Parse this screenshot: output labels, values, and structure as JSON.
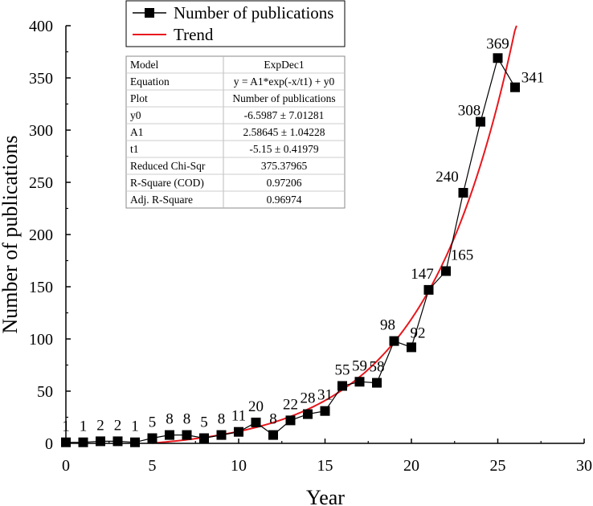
{
  "chart_data": {
    "type": "line",
    "xlabel": "Year",
    "ylabel": "Number of publications",
    "xlim": [
      0,
      30
    ],
    "ylim": [
      0,
      400
    ],
    "xticks": [
      0,
      5,
      10,
      15,
      20,
      25,
      30
    ],
    "yticks": [
      0,
      50,
      100,
      150,
      200,
      250,
      300,
      350,
      400
    ],
    "grid": false,
    "legend_position": "top-left",
    "series": [
      {
        "name": "Number of publications",
        "style": "line-with-square-markers",
        "color": "#000000",
        "x": [
          0,
          1,
          2,
          3,
          4,
          5,
          6,
          7,
          8,
          9,
          10,
          11,
          12,
          13,
          14,
          15,
          16,
          17,
          18,
          19,
          20,
          21,
          22,
          23,
          24,
          25,
          26
        ],
        "values": [
          1,
          1,
          2,
          2,
          1,
          5,
          8,
          8,
          5,
          8,
          11,
          20,
          8,
          22,
          28,
          31,
          55,
          59,
          58,
          98,
          92,
          147,
          165,
          240,
          308,
          369,
          341
        ]
      },
      {
        "name": "Trend",
        "style": "line",
        "color": "#e8171d",
        "model": "exp-dec1",
        "params": {
          "y0": -6.5987,
          "A1": 2.58645,
          "t1": -5.15
        },
        "x_range": [
          5,
          26.3
        ]
      }
    ],
    "data_labels": [
      "1",
      "1",
      "2",
      "2",
      "1",
      "5",
      "8",
      "8",
      "5",
      "8",
      "11",
      "20",
      "8",
      "22",
      "28",
      "31",
      "55",
      "59",
      "58",
      "98",
      "92",
      "147",
      "165",
      "240",
      "308",
      "369",
      "341"
    ],
    "fit_table": {
      "rows": [
        {
          "key": "Model",
          "value": "ExpDec1"
        },
        {
          "key": "Equation",
          "value": "y = A1*exp(-x/t1) + y0"
        },
        {
          "key": "Plot",
          "value": "Number of publications"
        },
        {
          "key": "y0",
          "value": "-6.5987 ± 7.01281"
        },
        {
          "key": "A1",
          "value": "2.58645 ± 1.04228"
        },
        {
          "key": "t1",
          "value": "-5.15 ± 0.41979"
        },
        {
          "key": "Reduced Chi-Sqr",
          "value": "375.37965"
        },
        {
          "key": "R-Square (COD)",
          "value": "0.97206"
        },
        {
          "key": "Adj. R-Square",
          "value": "0.96974"
        }
      ]
    }
  }
}
